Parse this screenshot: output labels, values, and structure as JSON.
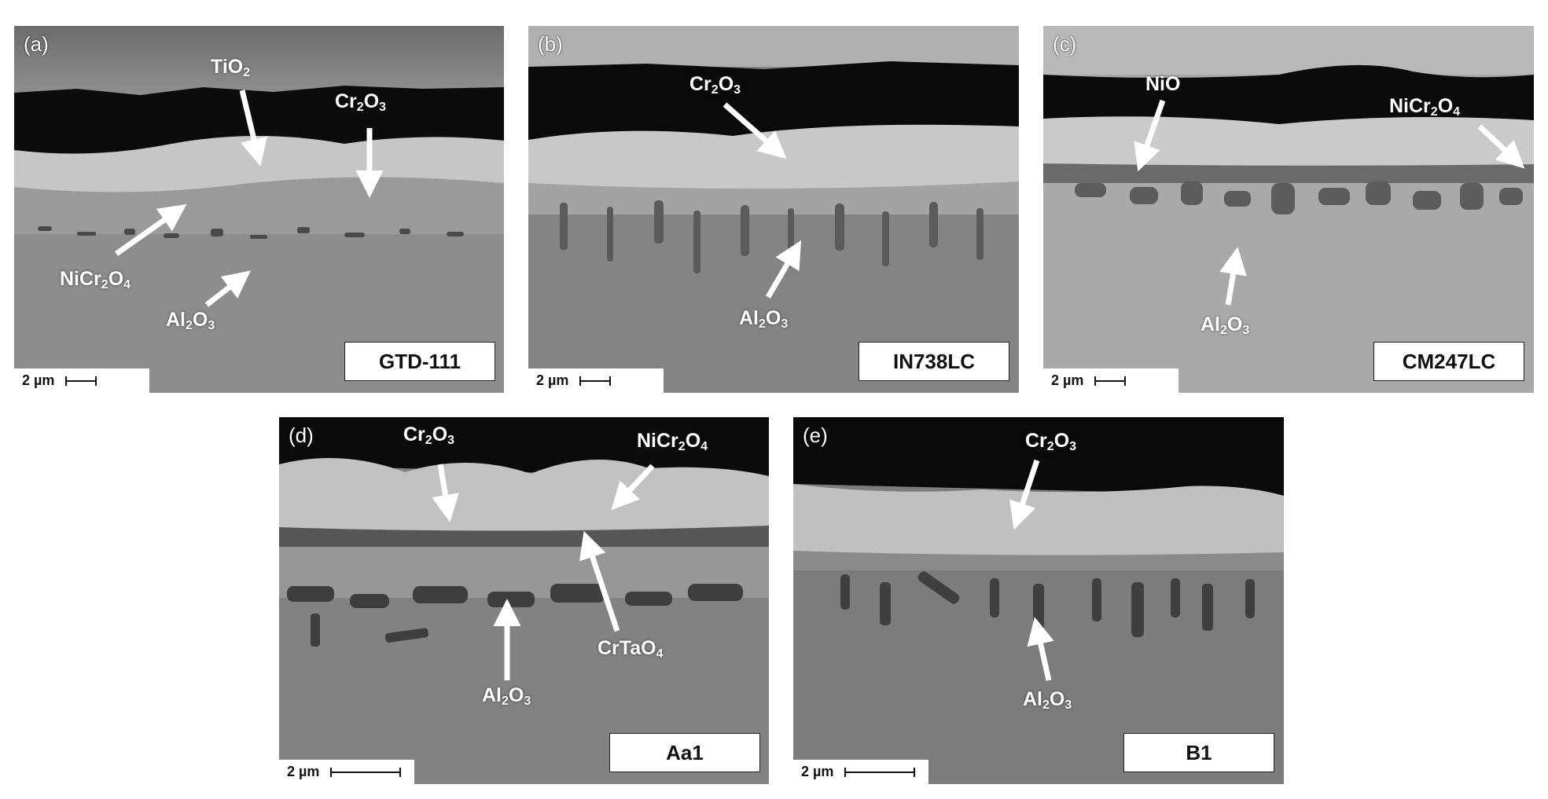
{
  "scale_text": "2 µm",
  "panels": {
    "a": {
      "letter": "(a)",
      "sample": "GTD-111",
      "labels": {
        "tio2": [
          "Ti",
          "O",
          "2"
        ],
        "cr2o3": [
          "Cr",
          "2",
          "O",
          "3"
        ],
        "nicr2o4": [
          "NiCr",
          "2",
          "O",
          "4"
        ],
        "al2o3": [
          "Al",
          "2",
          "O",
          "3"
        ]
      }
    },
    "b": {
      "letter": "(b)",
      "sample": "IN738LC",
      "labels": {
        "cr2o3": [
          "Cr",
          "2",
          "O",
          "3"
        ],
        "al2o3": [
          "Al",
          "2",
          "O",
          "3"
        ]
      }
    },
    "c": {
      "letter": "(c)",
      "sample": "CM247LC",
      "labels": {
        "nio": "NiO",
        "nicr2o4": [
          "NiCr",
          "2",
          "O",
          "4"
        ],
        "al2o3": [
          "Al",
          "2",
          "O",
          "3"
        ]
      }
    },
    "d": {
      "letter": "(d)",
      "sample": "Aa1",
      "labels": {
        "cr2o3": [
          "Cr",
          "2",
          "O",
          "3"
        ],
        "nicr2o4": [
          "NiCr",
          "2",
          "O",
          "4"
        ],
        "crtao4": [
          "CrTaO",
          "4"
        ],
        "al2o3": [
          "Al",
          "2",
          "O",
          "3"
        ]
      }
    },
    "e": {
      "letter": "(e)",
      "sample": "B1",
      "labels": {
        "cr2o3": [
          "Cr",
          "2",
          "O",
          "3"
        ],
        "al2o3": [
          "Al",
          "2",
          "O",
          "3"
        ]
      }
    }
  }
}
